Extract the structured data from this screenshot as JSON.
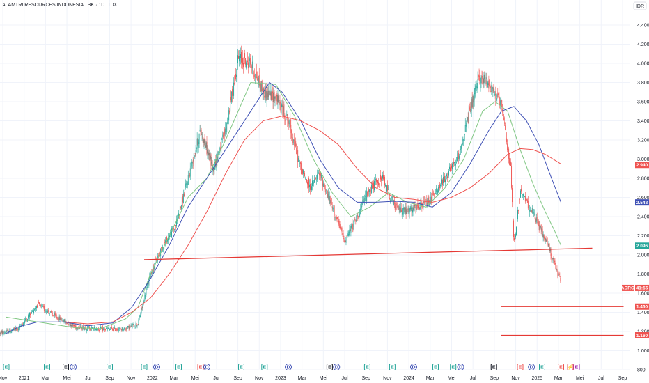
{
  "title": "ALAMTRI RESOURCES INDONESIA TBK · 1D · IDX",
  "currency": "IDR",
  "colors": {
    "up": "#26a69a",
    "down": "#ef5350",
    "ma_fast": "#81c784",
    "ma_mid": "#3f51b5",
    "ma_slow": "#ef5350",
    "line": "#e53935",
    "grid": "#f0f3fa"
  },
  "chart_data": {
    "type": "candlestick",
    "title": "ALAMTRI RESOURCES INDONESIA TBK · 1D · IDX",
    "ylim": [
      800,
      4500
    ],
    "y_ticks": [
      "800",
      "1.000",
      "1.200",
      "1.400",
      "1.600",
      "1.800",
      "2.000",
      "2.200",
      "2.400",
      "2.600",
      "2.800",
      "3.000",
      "3.200",
      "3.400",
      "3.600",
      "3.800",
      "4.000",
      "4.200",
      "4.400"
    ],
    "x_ticks": [
      "Nov",
      "2021",
      "Mar",
      "Mei",
      "Jul",
      "Sep",
      "Nov",
      "2022",
      "Mar",
      "Mei",
      "Jul",
      "Sep",
      "Nov",
      "2023",
      "Mar",
      "Mei",
      "Jul",
      "Sep",
      "Nov",
      "2024",
      "Mar",
      "Mei",
      "Jul",
      "Sep",
      "Nov",
      "2025",
      "Mar",
      "Mei",
      "Jul",
      "Sep"
    ],
    "price_path": [
      [
        0,
        1180
      ],
      [
        3,
        1230
      ],
      [
        6,
        1480
      ],
      [
        9,
        1350
      ],
      [
        12,
        1250
      ],
      [
        15,
        1230
      ],
      [
        18,
        1220
      ],
      [
        20,
        1230
      ],
      [
        22,
        1280
      ],
      [
        24,
        1800
      ],
      [
        26,
        2100
      ],
      [
        28,
        2300
      ],
      [
        30,
        2800
      ],
      [
        32,
        3300
      ],
      [
        34,
        2900
      ],
      [
        36,
        3300
      ],
      [
        38,
        4050
      ],
      [
        40,
        4000
      ],
      [
        42,
        3700
      ],
      [
        44,
        3650
      ],
      [
        46,
        3400
      ],
      [
        48,
        2900
      ],
      [
        49.5,
        2700
      ],
      [
        51,
        2850
      ],
      [
        53,
        2500
      ],
      [
        55,
        2150
      ],
      [
        57,
        2400
      ],
      [
        59,
        2700
      ],
      [
        61,
        2800
      ],
      [
        63,
        2500
      ],
      [
        65,
        2450
      ],
      [
        67,
        2500
      ],
      [
        69,
        2600
      ],
      [
        71,
        2800
      ],
      [
        73,
        3000
      ],
      [
        75,
        3500
      ],
      [
        76.5,
        3850
      ],
      [
        78,
        3800
      ],
      [
        80,
        3550
      ],
      [
        81.5,
        2900
      ],
      [
        82,
        2100
      ],
      [
        83,
        2650
      ],
      [
        84.5,
        2500
      ],
      [
        86,
        2300
      ],
      [
        87.5,
        2100
      ],
      [
        88.7,
        1850
      ],
      [
        89.5,
        1720
      ]
    ],
    "series": [
      {
        "name": "",
        "color_key": "ma_fast",
        "points": [
          [
            1,
            1350
          ],
          [
            4,
            1320
          ],
          [
            8,
            1280
          ],
          [
            12,
            1240
          ],
          [
            16,
            1230
          ],
          [
            20,
            1330
          ],
          [
            22,
            1450
          ],
          [
            24,
            1800
          ],
          [
            27,
            2200
          ],
          [
            30,
            2600
          ],
          [
            33,
            2800
          ],
          [
            36,
            3200
          ],
          [
            40,
            3800
          ],
          [
            44,
            3780
          ],
          [
            47,
            3450
          ],
          [
            50,
            3000
          ],
          [
            53,
            2650
          ],
          [
            56,
            2400
          ],
          [
            59,
            2500
          ],
          [
            62,
            2650
          ],
          [
            65,
            2550
          ],
          [
            68,
            2500
          ],
          [
            71,
            2700
          ],
          [
            74,
            3000
          ],
          [
            77,
            3500
          ],
          [
            79,
            3600
          ],
          [
            81,
            3500
          ],
          [
            83,
            3100
          ],
          [
            85,
            2750
          ],
          [
            87,
            2450
          ],
          [
            88.5,
            2250
          ],
          [
            89.5,
            2100
          ]
        ]
      },
      {
        "name": "",
        "color_key": "ma_mid",
        "points": [
          [
            1,
            1180
          ],
          [
            3,
            1250
          ],
          [
            6,
            1300
          ],
          [
            10,
            1300
          ],
          [
            14,
            1260
          ],
          [
            18,
            1290
          ],
          [
            21,
            1450
          ],
          [
            24,
            1750
          ],
          [
            27,
            2100
          ],
          [
            30,
            2500
          ],
          [
            33,
            2800
          ],
          [
            36,
            3100
          ],
          [
            40,
            3500
          ],
          [
            43,
            3800
          ],
          [
            45,
            3700
          ],
          [
            48,
            3400
          ],
          [
            51,
            3000
          ],
          [
            54,
            2700
          ],
          [
            57,
            2550
          ],
          [
            60,
            2550
          ],
          [
            63,
            2560
          ],
          [
            66,
            2550
          ],
          [
            69,
            2500
          ],
          [
            72,
            2650
          ],
          [
            75,
            2950
          ],
          [
            78,
            3300
          ],
          [
            80,
            3500
          ],
          [
            82,
            3550
          ],
          [
            84,
            3400
          ],
          [
            86,
            3150
          ],
          [
            88,
            2800
          ],
          [
            89.5,
            2550
          ]
        ]
      },
      {
        "name": "",
        "color_key": "ma_slow",
        "points": [
          [
            10,
            1300
          ],
          [
            14,
            1280
          ],
          [
            18,
            1300
          ],
          [
            21,
            1400
          ],
          [
            24,
            1550
          ],
          [
            27,
            1800
          ],
          [
            30,
            2100
          ],
          [
            33,
            2450
          ],
          [
            36,
            2850
          ],
          [
            39,
            3200
          ],
          [
            42,
            3400
          ],
          [
            45,
            3450
          ],
          [
            48,
            3400
          ],
          [
            51,
            3300
          ],
          [
            54,
            3150
          ],
          [
            57,
            2900
          ],
          [
            60,
            2700
          ],
          [
            63,
            2600
          ],
          [
            66,
            2580
          ],
          [
            69,
            2550
          ],
          [
            72,
            2600
          ],
          [
            75,
            2700
          ],
          [
            78,
            2850
          ],
          [
            81,
            3050
          ],
          [
            83,
            3110
          ],
          [
            85,
            3100
          ],
          [
            87,
            3050
          ],
          [
            89.5,
            2950
          ]
        ]
      }
    ],
    "trendlines": [
      {
        "from": [
          23,
          1950
        ],
        "to": [
          94.5,
          2070
        ]
      },
      {
        "from": [
          80,
          1460
        ],
        "to": [
          99.5,
          1460
        ]
      },
      {
        "from": [
          80,
          1160
        ],
        "to": [
          99.5,
          1160
        ]
      }
    ],
    "horizontal_levels": [
      {
        "value": 1655,
        "style": "thin"
      }
    ],
    "price_labels": [
      {
        "value": "2.940",
        "y": 2940,
        "color_key": "down"
      },
      {
        "value": "2.548",
        "y": 2548,
        "color_key": "ma_mid"
      },
      {
        "value": "2.096",
        "y": 2096,
        "color_key": "up"
      },
      {
        "ticker": "ADRO",
        "value": "41:56",
        "y": 1655,
        "color_key": "down"
      },
      {
        "value": "1.460",
        "y": 1460,
        "color_key": "down"
      },
      {
        "value": "1.160",
        "y": 1160,
        "color_key": "down"
      }
    ],
    "events": [
      {
        "x": 1,
        "letter": "E",
        "kind": "earnings-up"
      },
      {
        "x": 7.5,
        "letter": "E",
        "kind": "earnings-up"
      },
      {
        "x": 10.5,
        "letter": "E",
        "kind": "earnings-neutral"
      },
      {
        "x": 11.7,
        "letter": "D",
        "kind": "dividend"
      },
      {
        "x": 17.5,
        "letter": "E",
        "kind": "earnings-up"
      },
      {
        "x": 23,
        "letter": "E",
        "kind": "earnings-up"
      },
      {
        "x": 25,
        "letter": "D",
        "kind": "dividend"
      },
      {
        "x": 28.5,
        "letter": "E",
        "kind": "earnings-up"
      },
      {
        "x": 32,
        "letter": "E",
        "kind": "earnings-down"
      },
      {
        "x": 33,
        "letter": "D",
        "kind": "dividend"
      },
      {
        "x": 38.5,
        "letter": "E",
        "kind": "earnings-up"
      },
      {
        "x": 42.2,
        "letter": "E",
        "kind": "earnings-up"
      },
      {
        "x": 46,
        "letter": "D",
        "kind": "dividend"
      },
      {
        "x": 52.6,
        "letter": "E",
        "kind": "earnings-neutral"
      },
      {
        "x": 53.7,
        "letter": "D",
        "kind": "dividend"
      },
      {
        "x": 58.6,
        "letter": "E",
        "kind": "earnings-up"
      },
      {
        "x": 62.6,
        "letter": "E",
        "kind": "earnings-up"
      },
      {
        "x": 66,
        "letter": "D",
        "kind": "dividend"
      },
      {
        "x": 69.5,
        "letter": "E",
        "kind": "earnings-up"
      },
      {
        "x": 72.3,
        "letter": "E",
        "kind": "earnings-up"
      },
      {
        "x": 73.5,
        "letter": "D",
        "kind": "dividend"
      },
      {
        "x": 78.8,
        "letter": "E",
        "kind": "earnings-neutral"
      },
      {
        "x": 83,
        "letter": "E",
        "kind": "earnings-down"
      },
      {
        "x": 84.8,
        "letter": "D",
        "kind": "dividend"
      },
      {
        "x": 86.5,
        "letter": "E",
        "kind": "earnings-up"
      },
      {
        "x": 89.5,
        "letter": "E",
        "kind": "earnings-down"
      },
      {
        "x": 91,
        "letter": "⚡",
        "kind": "news"
      },
      {
        "x": 92,
        "letter": "E",
        "kind": "earnings-pending"
      }
    ]
  }
}
